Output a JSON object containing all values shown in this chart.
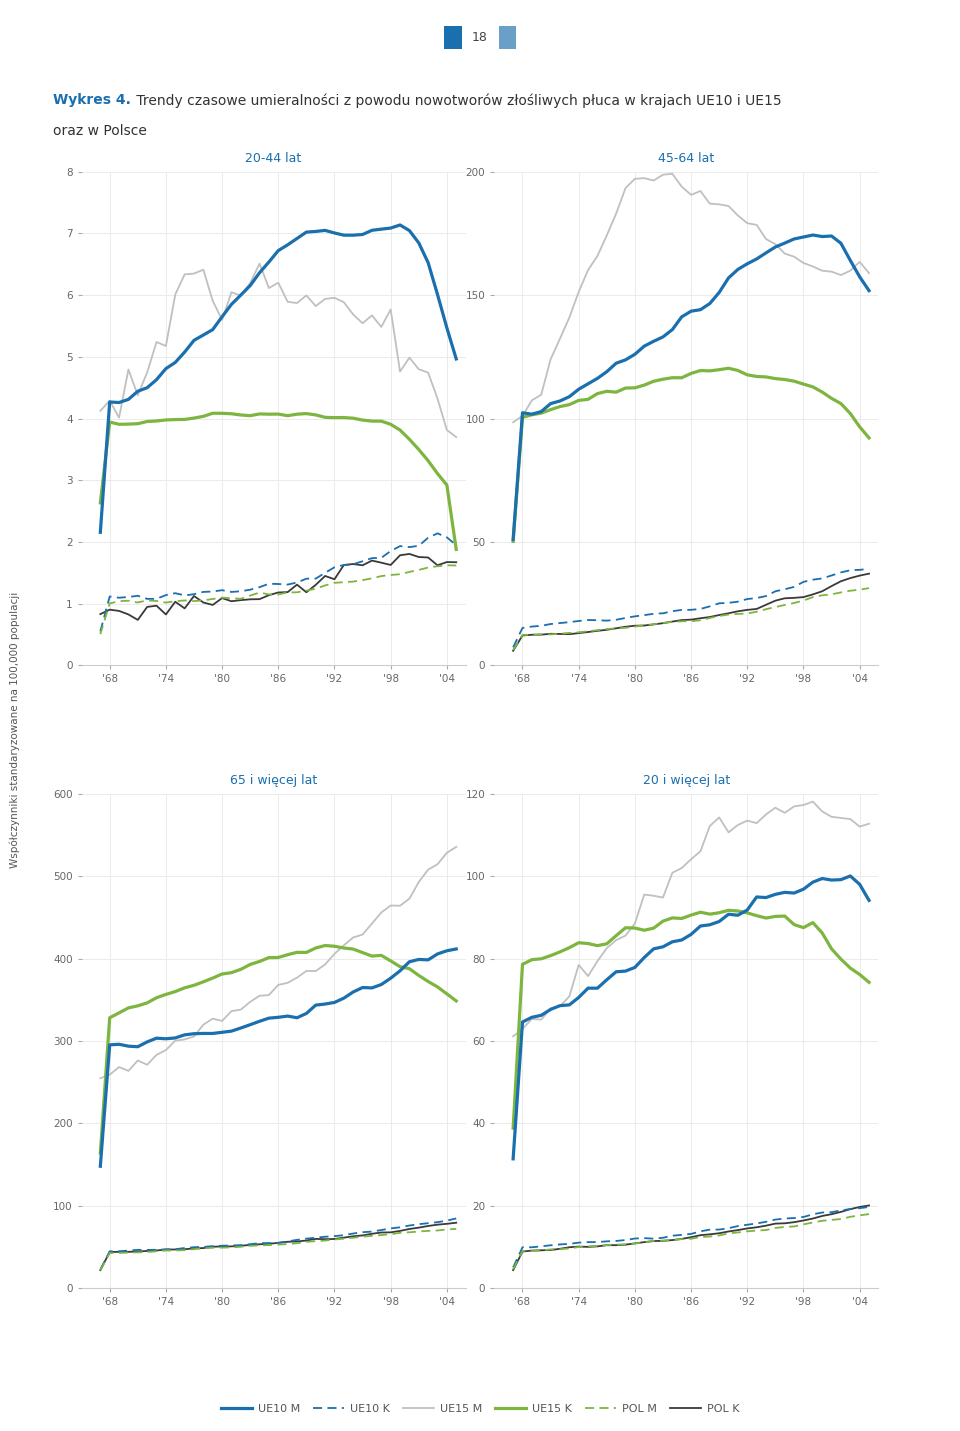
{
  "colors": {
    "UE10M": "#1a6faf",
    "UE10K": "#1a6faf",
    "UE15M": "#c0c0c0",
    "UE15K": "#7db53f",
    "POLM": "#7db53f",
    "POLK": "#3a3a3a"
  },
  "lw_thick": 2.3,
  "lw_thin": 1.3,
  "title_bold": "Wykres 4.",
  "title_rest": " Trendy czasowe umieralności z powodu nowotworów złośliwych płuca w krajach UE10 i UE15",
  "title_line2": "oraz w Polsce",
  "page_num": "18",
  "ylabel": "Współczynniki standaryzowane na 100,000 populacji",
  "x_tick_labels": [
    "'68",
    "'74",
    "'80",
    "'86",
    "'92",
    "'98",
    "'04"
  ],
  "x_tick_vals": [
    1968,
    1974,
    1980,
    1986,
    1992,
    1998,
    2004
  ],
  "xlim": [
    1965,
    2006
  ],
  "panels": [
    {
      "title": "20-44 lat",
      "ylim": [
        0,
        8
      ],
      "yticks": [
        0,
        1,
        2,
        3,
        4,
        5,
        6,
        7,
        8
      ]
    },
    {
      "title": "45-64 lat",
      "ylim": [
        0,
        200
      ],
      "yticks": [
        0,
        50,
        100,
        150,
        200
      ]
    },
    {
      "title": "65 i więcej lat",
      "ylim": [
        0,
        600
      ],
      "yticks": [
        0,
        100,
        200,
        300,
        400,
        500,
        600
      ]
    },
    {
      "title": "20 i więcej lat",
      "ylim": [
        0,
        120
      ],
      "yticks": [
        0,
        20,
        40,
        60,
        80,
        100,
        120
      ]
    }
  ],
  "legend": [
    "UE10 M",
    "UE10 K",
    "UE15 M",
    "UE15 K",
    "POL M",
    "POL K"
  ]
}
